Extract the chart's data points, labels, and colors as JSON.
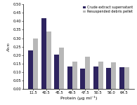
{
  "categories": [
    "11.5",
    "40.5",
    "45.5",
    "49.5",
    "47.5",
    "50.5",
    "56.0",
    "64.5"
  ],
  "supernatant": [
    0.228,
    0.42,
    0.205,
    0.135,
    0.12,
    0.135,
    0.123,
    0.13
  ],
  "debris": [
    0.298,
    0.34,
    0.243,
    0.163,
    0.193,
    0.163,
    0.157,
    0.13
  ],
  "color_supernatant": "#2e2460",
  "color_debris": "#b8b8b8",
  "ylabel": "$A_{570}$",
  "xlabel": "Protein (μg ml⁻¹)",
  "ylim": [
    0.0,
    0.5
  ],
  "ytick_vals": [
    0.0,
    0.05,
    0.1,
    0.15,
    0.2,
    0.25,
    0.3,
    0.35,
    0.4,
    0.45,
    0.5
  ],
  "ytick_labels": [
    "0.00",
    "0.05",
    "0.10",
    "0.15",
    "0.20",
    "0.25",
    "0.30",
    "0.35",
    "0.40",
    "0.45",
    "0.50"
  ],
  "legend_label1": "Crude extract supernatant",
  "legend_label2": "Resuspended debris pellet",
  "bar_width": 0.38,
  "axis_fontsize": 4.5,
  "tick_fontsize": 3.8,
  "legend_fontsize": 3.5
}
